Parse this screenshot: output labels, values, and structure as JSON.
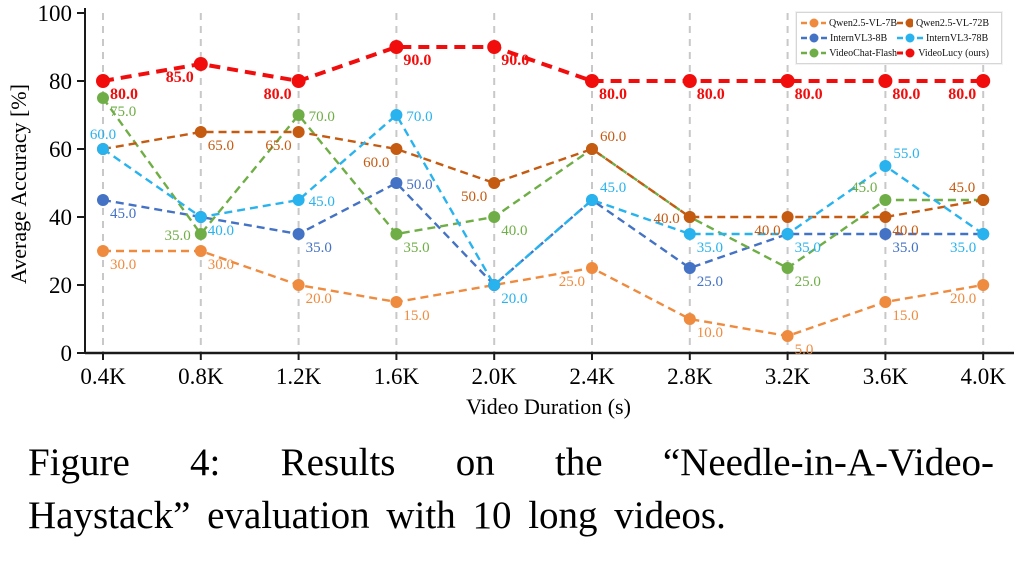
{
  "figure": {
    "caption_line1": "Figure 4: Results on the “Needle-in-A-Video-",
    "caption_line2": "Haystack” evaluation with 10 long videos."
  },
  "chart_data": {
    "type": "line",
    "title": "",
    "xlabel": "Video Duration (s)",
    "ylabel": "Average Accuracy [%]",
    "ylim": [
      0,
      100
    ],
    "yticks": [
      0,
      20,
      40,
      60,
      80,
      100
    ],
    "categories": [
      "0.4K",
      "0.8K",
      "1.2K",
      "1.6K",
      "2.0K",
      "2.4K",
      "2.8K",
      "3.2K",
      "3.6K",
      "4.0K"
    ],
    "grid": "vertical-dashed",
    "gridline_color": "#c8c8c8",
    "axis_color": "#1a1a1a",
    "legend_position": "upper right",
    "draw_order": [
      0,
      2,
      4,
      1,
      3,
      5
    ],
    "series": [
      {
        "name": "Qwen2.5-VL-7B",
        "color": "#EF8B3F",
        "line_width": 2.4,
        "dot_radius": 6,
        "bold_labels": false,
        "values": [
          30,
          30,
          20,
          15,
          20,
          25,
          10,
          5,
          15,
          20
        ],
        "labels": [
          "30.0",
          "30.0",
          "20.0",
          "15.0",
          null,
          "25.0",
          "10.0",
          "5.0",
          "15.0",
          "20.0"
        ],
        "label_pos": [
          "br",
          "br",
          "br",
          "br",
          null,
          "bl",
          "br",
          "br",
          "br",
          "bl"
        ]
      },
      {
        "name": "Qwen2.5-VL-72B",
        "color": "#C55A11",
        "line_width": 2.4,
        "dot_radius": 6,
        "bold_labels": false,
        "values": [
          60,
          65,
          65,
          60,
          50,
          60,
          40,
          40,
          40,
          45
        ],
        "labels": [
          null,
          "65.0",
          "65.0",
          "60.0",
          "50.0",
          "60.0",
          "40.0",
          "40.0",
          "40.0",
          "45.0"
        ],
        "label_pos": [
          null,
          "br",
          "bl",
          "bl",
          "bl",
          "ar",
          "l",
          "bl",
          "br",
          "al"
        ]
      },
      {
        "name": "InternVL3-8B",
        "color": "#4472C4",
        "line_width": 2.4,
        "dot_radius": 6,
        "bold_labels": false,
        "values": [
          45,
          40,
          35,
          50,
          20,
          45,
          25,
          35,
          35,
          35
        ],
        "labels": [
          "45.0",
          null,
          "35.0",
          "50.0",
          null,
          null,
          "25.0",
          null,
          "35.0",
          null
        ],
        "label_pos": [
          "br",
          null,
          "br",
          "r",
          null,
          null,
          "br",
          null,
          "br",
          null
        ]
      },
      {
        "name": "InternVL3-78B",
        "color": "#29B3EE",
        "line_width": 2.4,
        "dot_radius": 6,
        "bold_labels": false,
        "values": [
          60,
          40,
          45,
          70,
          20,
          45,
          35,
          35,
          55,
          35
        ],
        "labels": [
          "60.0",
          "40.0",
          "45.0",
          "70.0",
          "20.0",
          "45.0",
          "35.0",
          "35.0",
          "55.0",
          "35.0"
        ],
        "label_pos": [
          "a",
          "br",
          "r",
          "r",
          "br",
          "ar",
          "br",
          "br",
          "ar",
          "bl"
        ]
      },
      {
        "name": "VideoChat-Flash",
        "color": "#6FAE46",
        "line_width": 2.4,
        "dot_radius": 6,
        "bold_labels": false,
        "values": [
          75,
          35,
          70,
          35,
          40,
          60,
          40,
          25,
          45,
          45
        ],
        "labels": [
          "75.0",
          "35.0",
          "70.0",
          "35.0",
          "40.0",
          null,
          null,
          "25.0",
          "45.0",
          null
        ],
        "label_pos": [
          "br",
          "l",
          "r",
          "br",
          "br",
          null,
          null,
          "br",
          "al",
          null
        ]
      },
      {
        "name": "VideoLucy (ours)",
        "color": "#F20D0D",
        "line_width": 4,
        "dot_radius": 7,
        "bold_labels": true,
        "values": [
          80,
          85,
          80,
          90,
          90,
          80,
          80,
          80,
          80,
          80
        ],
        "labels": [
          "80.0",
          "85.0",
          "80.0",
          "90.0",
          "90.0",
          "80.0",
          "80.0",
          "80.0",
          "80.0",
          "80.0"
        ],
        "label_pos": [
          "br",
          "bl",
          "bl",
          "br",
          "br",
          "br",
          "br",
          "br",
          "br",
          "bl"
        ]
      }
    ]
  }
}
